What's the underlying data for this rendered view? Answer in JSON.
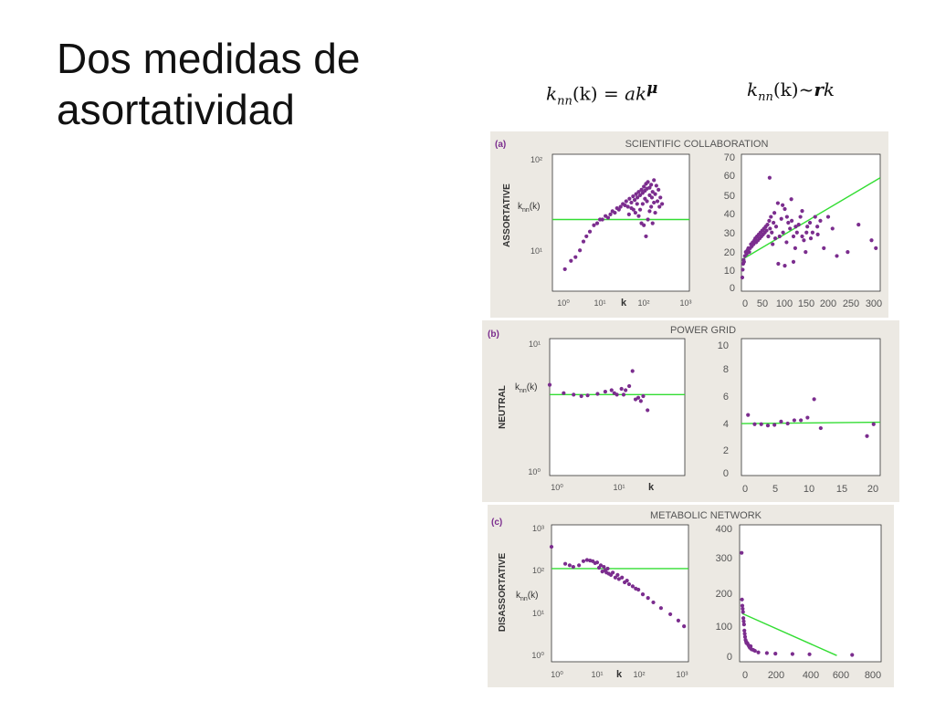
{
  "slide": {
    "title_line1": "Dos medidas de",
    "title_line2": "asortatividad"
  },
  "formulas": {
    "left": {
      "k": "k",
      "nn": "nn",
      "arg": "(k)",
      "eq": " = ",
      "a": "a",
      "k2": "k",
      "mu": "μ"
    },
    "right": {
      "k": "k",
      "nn": "nn",
      "arg": "(k)",
      "tilde": "~",
      "r": "r",
      "k2": "k"
    }
  },
  "colors": {
    "panel_bg": "#ece9e3",
    "points": "#7b2d8e",
    "fit_line": "#33dd33",
    "axes": "#333333",
    "text": "#555555"
  },
  "panels": [
    {
      "letter": "(a)",
      "header": "SCIENTIFIC COLLABORATION",
      "rowlabel": "ASSORTATIVE",
      "ylab_main": "k",
      "ylab_sub": "nn",
      "ylab_arg": "(k)",
      "xlab": "k",
      "log_y_ticks": [
        "10²",
        "10¹"
      ],
      "log_x_ticks": [
        "10⁰",
        "10¹",
        "10²",
        "10³"
      ],
      "lin_y_ticks": [
        "70",
        "60",
        "50",
        "40",
        "30",
        "20",
        "10",
        "0"
      ],
      "lin_x_ticks": [
        "0",
        "50",
        "100",
        "150",
        "200",
        "250",
        "300"
      ]
    },
    {
      "letter": "(b)",
      "header": "POWER GRID",
      "rowlabel": "NEUTRAL",
      "ylab_main": "k",
      "ylab_sub": "nn",
      "ylab_arg": "(k)",
      "xlab": "k",
      "log_y_ticks": [
        "10¹",
        "10⁰"
      ],
      "log_x_ticks": [
        "10⁰",
        "10¹"
      ],
      "lin_y_ticks": [
        "10",
        "8",
        "6",
        "4",
        "2",
        "0"
      ],
      "lin_x_ticks": [
        "0",
        "5",
        "10",
        "15",
        "20"
      ]
    },
    {
      "letter": "(c)",
      "header": "METABOLIC NETWORK",
      "rowlabel": "DISASSORTATIVE",
      "ylab_main": "k",
      "ylab_sub": "nn",
      "ylab_arg": "(k)",
      "xlab": "k",
      "log_y_ticks": [
        "10³",
        "10²",
        "10¹",
        "10⁰"
      ],
      "log_x_ticks": [
        "10⁰",
        "10¹",
        "10²",
        "10³"
      ],
      "lin_y_ticks": [
        "400",
        "300",
        "200",
        "100",
        "0"
      ],
      "lin_x_ticks": [
        "0",
        "200",
        "400",
        "600",
        "800"
      ]
    }
  ],
  "chart_data": [
    {
      "id": "a-log",
      "type": "scatter",
      "xscale": "log",
      "yscale": "log",
      "xlim": [
        0.5,
        1000
      ],
      "ylim": [
        8,
        100
      ],
      "fit": {
        "kind": "h",
        "y": 30
      },
      "points": [
        [
          1.0,
          12
        ],
        [
          1.4,
          14
        ],
        [
          1.8,
          15
        ],
        [
          2.3,
          17
        ],
        [
          2.8,
          20
        ],
        [
          3.3,
          22
        ],
        [
          4.0,
          24
        ],
        [
          5.0,
          27
        ],
        [
          6.0,
          28
        ],
        [
          7.0,
          30
        ],
        [
          8.0,
          30
        ],
        [
          9.5,
          32
        ],
        [
          11,
          31
        ],
        [
          12.5,
          33
        ],
        [
          14,
          35
        ],
        [
          16,
          34
        ],
        [
          18,
          37
        ],
        [
          20,
          36
        ],
        [
          22,
          38
        ],
        [
          25,
          40
        ],
        [
          28,
          39
        ],
        [
          30,
          42
        ],
        [
          33,
          38
        ],
        [
          36,
          44
        ],
        [
          40,
          41
        ],
        [
          44,
          46
        ],
        [
          48,
          43
        ],
        [
          52,
          48
        ],
        [
          56,
          45
        ],
        [
          60,
          50
        ],
        [
          65,
          47
        ],
        [
          70,
          52
        ],
        [
          75,
          49
        ],
        [
          80,
          55
        ],
        [
          85,
          51
        ],
        [
          90,
          58
        ],
        [
          95,
          53
        ],
        [
          100,
          60
        ],
        [
          110,
          54
        ],
        [
          120,
          57
        ],
        [
          130,
          50
        ],
        [
          140,
          62
        ],
        [
          150,
          48
        ],
        [
          160,
          56
        ],
        [
          180,
          52
        ],
        [
          200,
          45
        ],
        [
          220,
          40
        ],
        [
          50,
          34
        ],
        [
          60,
          32
        ],
        [
          70,
          28
        ],
        [
          80,
          27
        ],
        [
          90,
          22
        ],
        [
          100,
          30
        ],
        [
          110,
          35
        ],
        [
          120,
          38
        ],
        [
          65,
          36
        ],
        [
          75,
          40
        ],
        [
          85,
          44
        ],
        [
          95,
          42
        ],
        [
          45,
          36
        ],
        [
          55,
          40
        ],
        [
          35,
          33
        ],
        [
          40,
          37
        ],
        [
          130,
          28
        ],
        [
          150,
          34
        ],
        [
          170,
          42
        ],
        [
          190,
          38
        ],
        [
          110,
          47
        ],
        [
          125,
          45
        ],
        [
          140,
          41
        ]
      ]
    },
    {
      "id": "a-lin",
      "type": "scatter",
      "xscale": "linear",
      "yscale": "linear",
      "xlim": [
        0,
        320
      ],
      "ylim": [
        0,
        70
      ],
      "fit": {
        "kind": "line",
        "x1": 0,
        "y1": 16,
        "x2": 320,
        "y2": 58
      },
      "points": [
        [
          2,
          7
        ],
        [
          3,
          11
        ],
        [
          4,
          14
        ],
        [
          5,
          16
        ],
        [
          6,
          15
        ],
        [
          8,
          18
        ],
        [
          10,
          20
        ],
        [
          12,
          19
        ],
        [
          14,
          21
        ],
        [
          16,
          22
        ],
        [
          18,
          20
        ],
        [
          20,
          22
        ],
        [
          22,
          24
        ],
        [
          24,
          23
        ],
        [
          26,
          25
        ],
        [
          28,
          24
        ],
        [
          30,
          26
        ],
        [
          32,
          27
        ],
        [
          34,
          25
        ],
        [
          36,
          28
        ],
        [
          38,
          26
        ],
        [
          40,
          29
        ],
        [
          42,
          27
        ],
        [
          44,
          30
        ],
        [
          46,
          28
        ],
        [
          48,
          31
        ],
        [
          50,
          29
        ],
        [
          52,
          32
        ],
        [
          54,
          30
        ],
        [
          56,
          33
        ],
        [
          58,
          31
        ],
        [
          60,
          34
        ],
        [
          62,
          28
        ],
        [
          64,
          36
        ],
        [
          66,
          32
        ],
        [
          68,
          38
        ],
        [
          70,
          30
        ],
        [
          72,
          24
        ],
        [
          74,
          35
        ],
        [
          76,
          40
        ],
        [
          78,
          27
        ],
        [
          80,
          33
        ],
        [
          84,
          45
        ],
        [
          88,
          28
        ],
        [
          92,
          37
        ],
        [
          96,
          30
        ],
        [
          100,
          42
        ],
        [
          104,
          25
        ],
        [
          108,
          35
        ],
        [
          112,
          32
        ],
        [
          116,
          36
        ],
        [
          120,
          28
        ],
        [
          124,
          22
        ],
        [
          128,
          30
        ],
        [
          132,
          34
        ],
        [
          136,
          38
        ],
        [
          140,
          41
        ],
        [
          144,
          26
        ],
        [
          148,
          20
        ],
        [
          152,
          33
        ],
        [
          158,
          35
        ],
        [
          164,
          30
        ],
        [
          170,
          38
        ],
        [
          176,
          29
        ],
        [
          182,
          36
        ],
        [
          200,
          38
        ],
        [
          210,
          32
        ],
        [
          65,
          58
        ],
        [
          95,
          44
        ],
        [
          105,
          38
        ],
        [
          115,
          47
        ],
        [
          125,
          33
        ],
        [
          85,
          14
        ],
        [
          100,
          13
        ],
        [
          120,
          15
        ],
        [
          140,
          28
        ],
        [
          150,
          30
        ],
        [
          160,
          27
        ],
        [
          175,
          33
        ],
        [
          190,
          22
        ],
        [
          220,
          18
        ],
        [
          245,
          20
        ],
        [
          270,
          34
        ],
        [
          300,
          26
        ],
        [
          310,
          22
        ]
      ]
    },
    {
      "id": "b-log",
      "type": "scatter",
      "xscale": "log",
      "yscale": "log",
      "xlim": [
        1,
        50
      ],
      "ylim": [
        1,
        10
      ],
      "fit": {
        "kind": "h",
        "y": 3.9
      },
      "points": [
        [
          1.0,
          4.6
        ],
        [
          1.5,
          4.0
        ],
        [
          2.0,
          3.9
        ],
        [
          2.5,
          3.8
        ],
        [
          3.0,
          3.85
        ],
        [
          4.0,
          3.95
        ],
        [
          5.0,
          4.1
        ],
        [
          6.0,
          4.2
        ],
        [
          7.0,
          3.9
        ],
        [
          8.0,
          4.3
        ],
        [
          9.0,
          4.2
        ],
        [
          10.0,
          4.5
        ],
        [
          11.0,
          5.8
        ],
        [
          12.0,
          3.6
        ],
        [
          13.0,
          3.7
        ],
        [
          14.0,
          3.5
        ],
        [
          15.0,
          3.8
        ],
        [
          17.0,
          3.0
        ],
        [
          8.5,
          3.9
        ],
        [
          6.5,
          4.0
        ]
      ]
    },
    {
      "id": "b-lin",
      "type": "scatter",
      "xscale": "linear",
      "yscale": "linear",
      "xlim": [
        0,
        21
      ],
      "ylim": [
        0,
        10.4
      ],
      "fit": {
        "kind": "line",
        "x1": 0,
        "y1": 3.95,
        "x2": 21,
        "y2": 4.05
      },
      "points": [
        [
          1,
          4.6
        ],
        [
          2,
          3.9
        ],
        [
          3,
          3.9
        ],
        [
          4,
          3.8
        ],
        [
          5,
          3.85
        ],
        [
          6,
          4.1
        ],
        [
          7,
          3.95
        ],
        [
          8,
          4.2
        ],
        [
          9,
          4.2
        ],
        [
          10,
          4.4
        ],
        [
          11,
          5.8
        ],
        [
          12,
          3.6
        ],
        [
          19,
          3.0
        ],
        [
          20,
          3.9
        ]
      ]
    },
    {
      "id": "c-log",
      "type": "scatter",
      "xscale": "log",
      "yscale": "log",
      "xlim": [
        1,
        1000
      ],
      "ylim": [
        1,
        1000
      ],
      "fit": {
        "kind": "h",
        "y": 110
      },
      "points": [
        [
          1.0,
          330
        ],
        [
          2.0,
          140
        ],
        [
          2.5,
          130
        ],
        [
          3.0,
          120
        ],
        [
          4.0,
          130
        ],
        [
          5.0,
          160
        ],
        [
          6.0,
          170
        ],
        [
          7.0,
          165
        ],
        [
          8.0,
          160
        ],
        [
          9.0,
          145
        ],
        [
          10.0,
          150
        ],
        [
          11.0,
          115
        ],
        [
          12.0,
          130
        ],
        [
          13.0,
          95
        ],
        [
          14.0,
          120
        ],
        [
          15.0,
          100
        ],
        [
          16.0,
          90
        ],
        [
          17.0,
          110
        ],
        [
          18.0,
          85
        ],
        [
          20.0,
          80
        ],
        [
          22.0,
          90
        ],
        [
          25.0,
          70
        ],
        [
          28.0,
          80
        ],
        [
          30.0,
          65
        ],
        [
          35.0,
          70
        ],
        [
          40.0,
          55
        ],
        [
          45.0,
          60
        ],
        [
          50.0,
          50
        ],
        [
          60.0,
          45
        ],
        [
          70.0,
          40
        ],
        [
          80.0,
          38
        ],
        [
          100.0,
          30
        ],
        [
          130.0,
          25
        ],
        [
          170.0,
          20
        ],
        [
          250.0,
          15
        ],
        [
          400.0,
          11
        ],
        [
          600.0,
          8
        ],
        [
          800.0,
          6
        ]
      ]
    },
    {
      "id": "c-lin",
      "type": "scatter",
      "xscale": "linear",
      "yscale": "linear",
      "xlim": [
        -10,
        820
      ],
      "ylim": [
        -20,
        420
      ],
      "fit": {
        "kind": "line",
        "x1": 5,
        "y1": 135,
        "x2": 560,
        "y2": 0
      },
      "points": [
        [
          2,
          330
        ],
        [
          4,
          180
        ],
        [
          6,
          160
        ],
        [
          8,
          150
        ],
        [
          10,
          140
        ],
        [
          12,
          120
        ],
        [
          14,
          110
        ],
        [
          16,
          100
        ],
        [
          18,
          80
        ],
        [
          20,
          70
        ],
        [
          22,
          60
        ],
        [
          25,
          50
        ],
        [
          28,
          45
        ],
        [
          30,
          40
        ],
        [
          35,
          40
        ],
        [
          40,
          35
        ],
        [
          45,
          30
        ],
        [
          50,
          25
        ],
        [
          55,
          30
        ],
        [
          60,
          20
        ],
        [
          70,
          18
        ],
        [
          80,
          15
        ],
        [
          100,
          10
        ],
        [
          150,
          8
        ],
        [
          200,
          6
        ],
        [
          300,
          5
        ],
        [
          400,
          4
        ],
        [
          650,
          2
        ]
      ]
    }
  ]
}
